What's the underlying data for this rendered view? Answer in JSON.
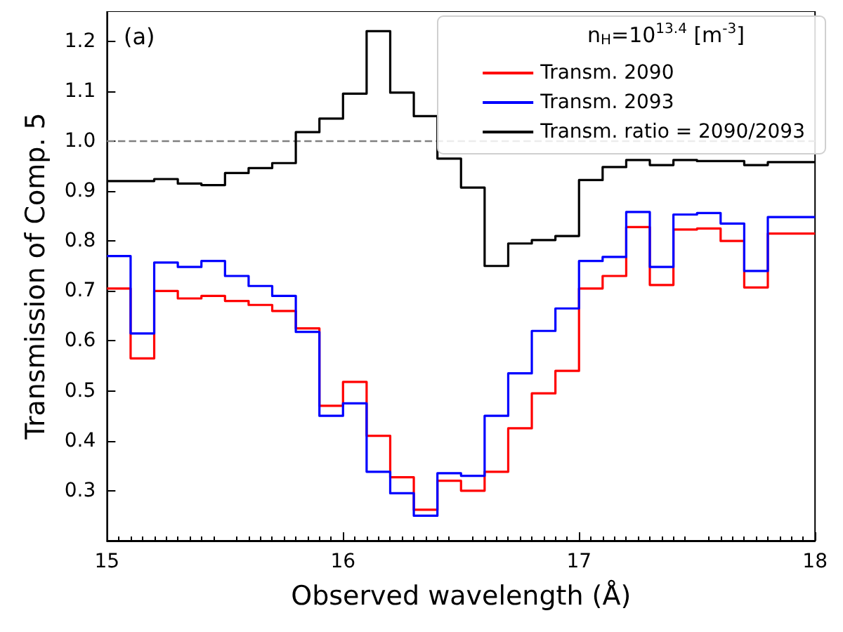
{
  "chart_data": {
    "type": "step",
    "xlabel": "Observed wavelength (Å)",
    "ylabel": "Transmission of Comp. 5",
    "legend_title": "n$_{H}$=10$^{13.4}$ [m$^{-3}$]",
    "annotations": [
      "(a)"
    ],
    "x": [
      15.0,
      15.1,
      15.2,
      15.3,
      15.4,
      15.5,
      15.6,
      15.7,
      15.8,
      15.9,
      16.0,
      16.1,
      16.2,
      16.3,
      16.4,
      16.5,
      16.6,
      16.7,
      16.8,
      16.9,
      17.0,
      17.1,
      17.2,
      17.3,
      17.4,
      17.5,
      17.6,
      17.7,
      17.8,
      17.9,
      18.0
    ],
    "series": [
      {
        "name": "Transm. 2090",
        "color": "#ff0000",
        "values": [
          0.705,
          0.565,
          0.7,
          0.685,
          0.69,
          0.68,
          0.672,
          0.66,
          0.625,
          0.47,
          0.518,
          0.41,
          0.327,
          0.262,
          0.32,
          0.3,
          0.338,
          0.425,
          0.495,
          0.54,
          0.705,
          0.73,
          0.828,
          0.712,
          0.823,
          0.825,
          0.8,
          0.707,
          0.815,
          0.815,
          0.815
        ]
      },
      {
        "name": "Transm. 2093",
        "color": "#0000ff",
        "values": [
          0.77,
          0.615,
          0.757,
          0.748,
          0.76,
          0.73,
          0.71,
          0.69,
          0.618,
          0.45,
          0.475,
          0.338,
          0.295,
          0.25,
          0.335,
          0.33,
          0.45,
          0.535,
          0.62,
          0.665,
          0.76,
          0.768,
          0.858,
          0.748,
          0.853,
          0.856,
          0.835,
          0.74,
          0.848,
          0.848,
          0.848
        ]
      },
      {
        "name": "Transm. ratio = 2090/2093",
        "color": "#000000",
        "values": [
          0.92,
          0.92,
          0.924,
          0.915,
          0.912,
          0.936,
          0.946,
          0.956,
          1.018,
          1.045,
          1.095,
          1.22,
          1.097,
          1.05,
          0.965,
          0.907,
          0.75,
          0.795,
          0.802,
          0.81,
          0.922,
          0.948,
          0.962,
          0.952,
          0.962,
          0.96,
          0.96,
          0.952,
          0.958,
          0.958,
          0.958
        ]
      }
    ],
    "ref_lines": [
      {
        "axis": "y",
        "value": 1.0,
        "color": "#808080",
        "line_style": "dashed"
      }
    ],
    "xlim": [
      15,
      18
    ],
    "xticks": [
      15,
      16,
      17,
      18
    ],
    "ylim": [
      0.2,
      1.26
    ],
    "yticks": [
      0.3,
      0.4,
      0.5,
      0.6,
      0.7,
      0.8,
      0.9,
      {
        "value": 1.0,
        "label": "1.0"
      },
      1.1,
      1.2
    ],
    "legend": "top right",
    "grid": false,
    "marker": "none",
    "line_style": "solid"
  }
}
